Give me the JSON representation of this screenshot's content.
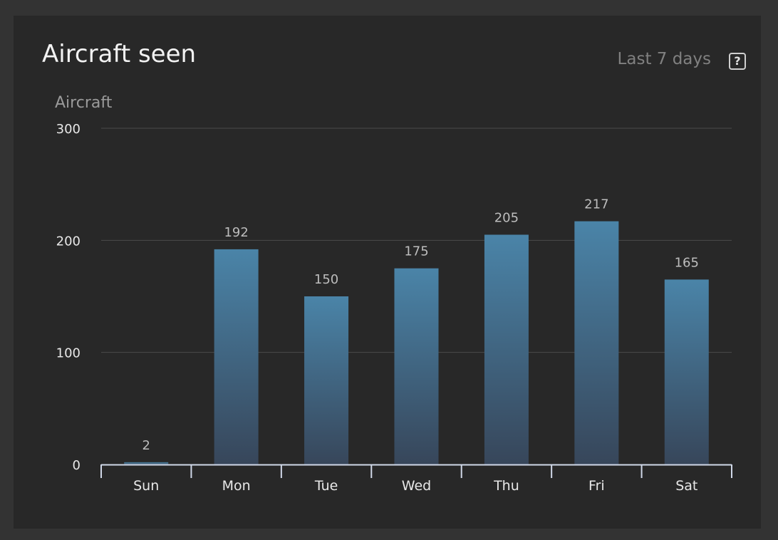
{
  "header": {
    "title": "Aircraft seen",
    "range_label": "Last 7 days",
    "help_label": "?"
  },
  "colors": {
    "card_bg": "#282828",
    "bar_top": "#4a84a8",
    "bar_bottom": "#37465a",
    "grid": "#4a4a4a",
    "axis": "#d0d8e8"
  },
  "chart_data": {
    "type": "bar",
    "ylabel": "Aircraft",
    "categories": [
      "Sun",
      "Mon",
      "Tue",
      "Wed",
      "Thu",
      "Fri",
      "Sat"
    ],
    "values": [
      2,
      192,
      150,
      175,
      205,
      217,
      165
    ],
    "ylim": [
      0,
      300
    ],
    "yticks": [
      0,
      100,
      200,
      300
    ],
    "grid": true,
    "data_labels": true
  }
}
